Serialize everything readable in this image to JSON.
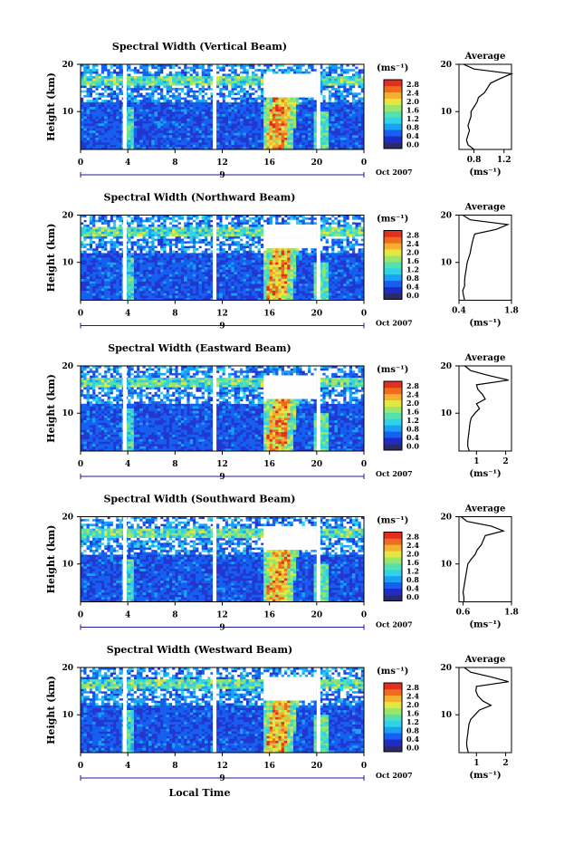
{
  "figure": {
    "xlabel": "Local Time",
    "date_label": "Oct 2007",
    "colorbar_unit": "(ms⁻¹)",
    "colorbar_ticks": [
      "0.0",
      "0.4",
      "0.8",
      "1.2",
      "1.6",
      "2.0",
      "2.4",
      "2.8"
    ],
    "colorscale": [
      "#2a2a6a",
      "#1e2bc8",
      "#1560f0",
      "#1aa0f5",
      "#30d2e8",
      "#55e0b0",
      "#9ae66a",
      "#e6e640",
      "#f5b030",
      "#f06a20",
      "#e03020"
    ],
    "night_fill": "#c8c8f0"
  },
  "chart_data": [
    {
      "type": "heatmap",
      "title": "Spectral Width (Vertical Beam)",
      "ylabel": "Height (km)",
      "x_ticks": [
        "0",
        "4",
        "8",
        "12",
        "16",
        "20",
        "0"
      ],
      "day_marker": "9",
      "y_ticks": [
        "10",
        "20"
      ],
      "xlim": [
        0,
        24
      ],
      "ylim": [
        2,
        20
      ],
      "avg_title": "Average",
      "avg_xlabel": "(ms⁻¹)",
      "avg_x_ticks": [
        "0.8",
        "1.2"
      ],
      "avg_xlim": [
        0.6,
        1.3
      ],
      "avg_profile": {
        "height": [
          2,
          3,
          4,
          5,
          6,
          7,
          8,
          9,
          10,
          11,
          12,
          13,
          14,
          15,
          16,
          17,
          18,
          19,
          20
        ],
        "width": [
          0.8,
          0.72,
          0.7,
          0.72,
          0.74,
          0.72,
          0.74,
          0.76,
          0.76,
          0.8,
          0.84,
          0.86,
          0.94,
          0.98,
          1.02,
          1.15,
          1.3,
          0.8,
          0.66
        ]
      }
    },
    {
      "type": "heatmap",
      "title": "Spectral Width (Northward Beam)",
      "ylabel": "Height (km)",
      "x_ticks": [
        "0",
        "4",
        "8",
        "12",
        "16",
        "20",
        "0"
      ],
      "day_marker": "9",
      "y_ticks": [
        "10",
        "20"
      ],
      "xlim": [
        0,
        24
      ],
      "ylim": [
        2,
        20
      ],
      "avg_title": "Average",
      "avg_xlabel": "(ms⁻¹)",
      "avg_x_ticks": [
        "0.4",
        "1.8"
      ],
      "avg_xlim": [
        0.4,
        1.8
      ],
      "avg_profile": {
        "height": [
          2,
          3,
          4,
          5,
          6,
          7,
          8,
          9,
          10,
          11,
          12,
          13,
          14,
          15,
          16,
          17,
          18,
          19,
          20
        ],
        "width": [
          0.55,
          0.52,
          0.5,
          0.55,
          0.55,
          0.56,
          0.58,
          0.6,
          0.62,
          0.66,
          0.7,
          0.72,
          0.75,
          0.78,
          0.82,
          1.4,
          1.7,
          0.7,
          0.5
        ]
      }
    },
    {
      "type": "heatmap",
      "title": "Spectral Width (Eastward Beam)",
      "ylabel": "Height (km)",
      "x_ticks": [
        "0",
        "4",
        "8",
        "12",
        "16",
        "20",
        "0"
      ],
      "day_marker": "9",
      "y_ticks": [
        "10",
        "20"
      ],
      "xlim": [
        0,
        24
      ],
      "ylim": [
        2,
        20
      ],
      "avg_title": "Average",
      "avg_xlabel": "(ms⁻¹)",
      "avg_x_ticks": [
        "1",
        "2"
      ],
      "avg_xlim": [
        0.4,
        2.2
      ],
      "avg_profile": {
        "height": [
          2,
          3,
          4,
          5,
          6,
          7,
          8,
          9,
          10,
          11,
          12,
          13,
          14,
          15,
          16,
          17,
          18,
          19,
          20
        ],
        "width": [
          0.75,
          0.7,
          0.7,
          0.72,
          0.74,
          0.76,
          0.78,
          0.82,
          0.95,
          1.1,
          1.0,
          1.3,
          1.2,
          1.05,
          1.0,
          2.1,
          1.4,
          0.8,
          0.6
        ]
      }
    },
    {
      "type": "heatmap",
      "title": "Spectral Width (Southward Beam)",
      "ylabel": "Height (km)",
      "x_ticks": [
        "0",
        "4",
        "8",
        "12",
        "16",
        "20",
        "0"
      ],
      "day_marker": "9",
      "y_ticks": [
        "10",
        "20"
      ],
      "xlim": [
        0,
        24
      ],
      "ylim": [
        2,
        20
      ],
      "avg_title": "Average",
      "avg_xlabel": "(ms⁻¹)",
      "avg_x_ticks": [
        "0.6",
        "1.8"
      ],
      "avg_xlim": [
        0.5,
        1.8
      ],
      "avg_profile": {
        "height": [
          2,
          3,
          4,
          5,
          6,
          7,
          8,
          9,
          10,
          11,
          12,
          13,
          14,
          15,
          16,
          17,
          18,
          19,
          20
        ],
        "width": [
          0.62,
          0.62,
          0.6,
          0.62,
          0.64,
          0.66,
          0.68,
          0.7,
          0.72,
          0.8,
          0.9,
          0.95,
          1.05,
          1.1,
          1.15,
          1.6,
          1.3,
          0.7,
          0.55
        ]
      }
    },
    {
      "type": "heatmap",
      "title": "Spectral Width (Westward Beam)",
      "ylabel": "Height (km)",
      "x_ticks": [
        "0",
        "4",
        "8",
        "12",
        "16",
        "20",
        "0"
      ],
      "day_marker": "9",
      "y_ticks": [
        "10",
        "20"
      ],
      "xlim": [
        0,
        24
      ],
      "ylim": [
        2,
        20
      ],
      "avg_title": "Average",
      "avg_xlabel": "(ms⁻¹)",
      "avg_x_ticks": [
        "1",
        "2"
      ],
      "avg_xlim": [
        0.4,
        2.2
      ],
      "avg_profile": {
        "height": [
          2,
          3,
          4,
          5,
          6,
          7,
          8,
          9,
          10,
          11,
          12,
          13,
          14,
          15,
          16,
          17,
          18,
          19,
          20
        ],
        "width": [
          0.72,
          0.68,
          0.66,
          0.68,
          0.7,
          0.72,
          0.74,
          0.8,
          0.95,
          1.1,
          1.5,
          1.2,
          1.05,
          0.98,
          1.0,
          2.1,
          1.5,
          0.8,
          0.58
        ]
      }
    }
  ]
}
